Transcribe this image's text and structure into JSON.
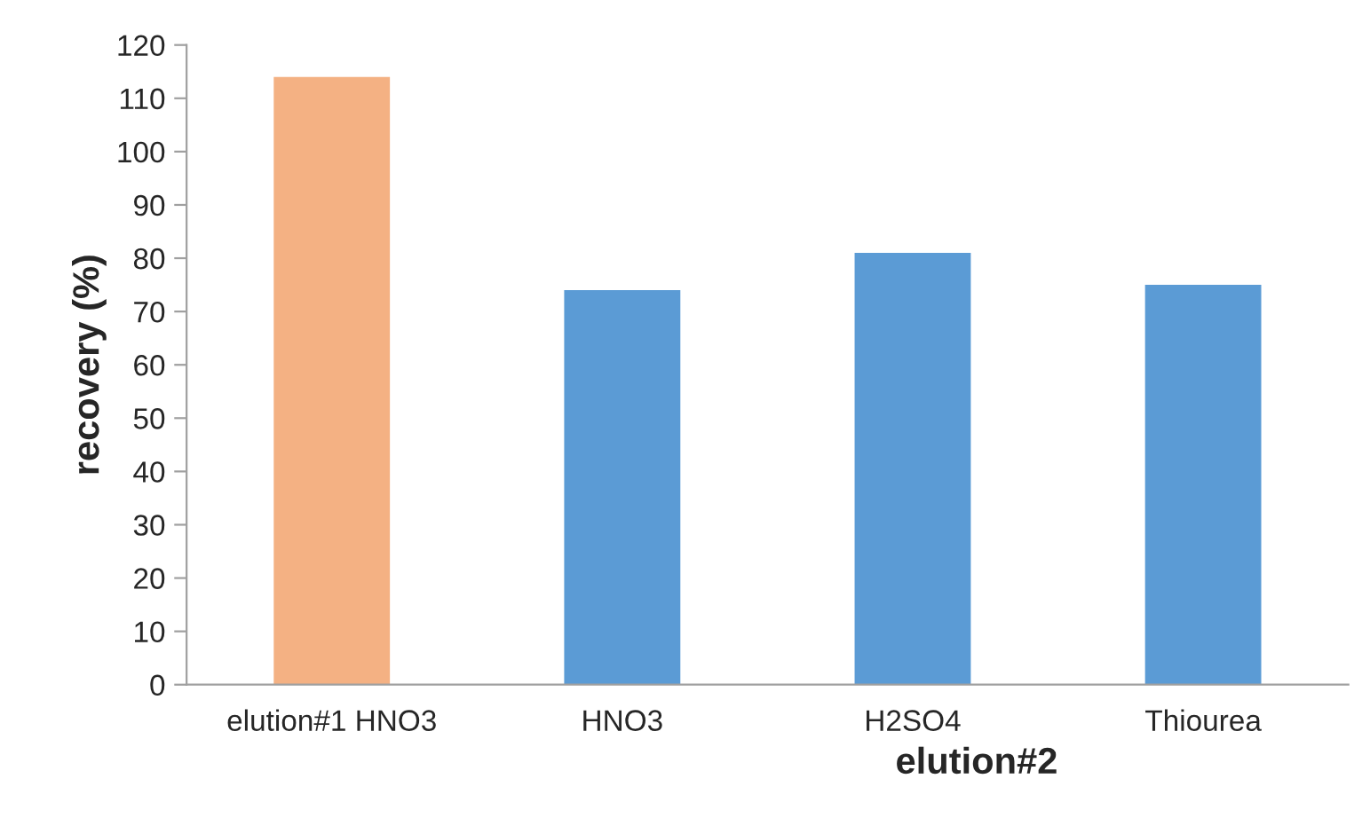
{
  "chart_data": {
    "type": "bar",
    "categories": [
      "elution#1 HNO3",
      "HNO3",
      "H2SO4",
      "Thiourea"
    ],
    "values": [
      114,
      74,
      81,
      75
    ],
    "colors": [
      "#f4b183",
      "#5b9bd5",
      "#5b9bd5",
      "#5b9bd5"
    ],
    "xlabel": "elution#2",
    "ylabel": "recovery (%)",
    "ylim": [
      0,
      120
    ],
    "yticks": [
      0,
      10,
      20,
      30,
      40,
      50,
      60,
      70,
      80,
      90,
      100,
      110,
      120
    ],
    "grid": false,
    "legend": false
  }
}
